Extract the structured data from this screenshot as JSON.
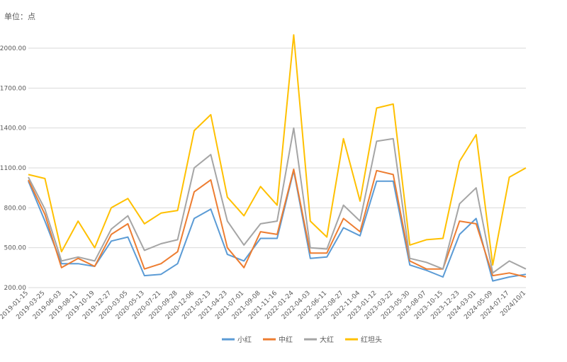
{
  "chart_data": {
    "type": "line",
    "unit_label": "单位：点",
    "ylim": [
      200,
      2200
    ],
    "y_ticks": [
      200,
      500,
      800,
      1100,
      1400,
      1700,
      2000
    ],
    "y_tick_labels": [
      "200.00",
      "500.00",
      "800.00",
      "1100.00",
      "1400.00",
      "1700.00",
      "2000.00"
    ],
    "grid": "horizontal",
    "legend_position": "bottom",
    "x_tick_labels": [
      "2019-01-15",
      "2019-03-25",
      "2019-06-03",
      "2019-08-11",
      "2019-10-19",
      "2019-12-27",
      "2020-03-05",
      "2020-05-13",
      "2020-07-21",
      "2020-09-28",
      "2020-12-06",
      "2021-02-13",
      "2021-04-23",
      "2021-07-01",
      "2021-09-08",
      "2021-11-16",
      "2022-01-24",
      "2022-04-03",
      "2022-06-11",
      "2022-08-27",
      "2022-11-04",
      "2023-01-12",
      "2023-03-22",
      "2023-05-30",
      "2023-08-07",
      "2023-10-15",
      "2023-12-23",
      "2024-03-01",
      "2024-05-09",
      "2024-07-17",
      "2024/10/1"
    ],
    "x": [
      "2019-01-15",
      "2019-03-25",
      "2019-06-03",
      "2019-08-11",
      "2019-10-19",
      "2019-12-27",
      "2020-03-05",
      "2020-05-13",
      "2020-07-21",
      "2020-09-28",
      "2020-12-06",
      "2021-02-13",
      "2021-04-23",
      "2021-07-01",
      "2021-09-08",
      "2021-11-16",
      "2022-01-24",
      "2022-04-03",
      "2022-06-11",
      "2022-08-27",
      "2022-11-04",
      "2023-01-12",
      "2023-03-22",
      "2023-05-30",
      "2023-08-07",
      "2023-10-15",
      "2023-12-23",
      "2024-03-01",
      "2024-05-09",
      "2024-07-17",
      "2024-10-01"
    ],
    "series": [
      {
        "name": "小红",
        "color": "#5b9bd5",
        "values": [
          1000,
          700,
          380,
          380,
          360,
          550,
          580,
          290,
          300,
          380,
          720,
          790,
          450,
          400,
          570,
          570,
          1080,
          420,
          430,
          650,
          590,
          1000,
          1000,
          370,
          330,
          280,
          600,
          720,
          250,
          280,
          300
        ]
      },
      {
        "name": "中红",
        "color": "#ed7d31",
        "values": [
          1010,
          750,
          350,
          420,
          360,
          600,
          680,
          340,
          380,
          470,
          920,
          1010,
          500,
          350,
          620,
          600,
          1090,
          460,
          460,
          720,
          620,
          1080,
          1050,
          400,
          340,
          340,
          700,
          680,
          290,
          310,
          280
        ]
      },
      {
        "name": "大红",
        "color": "#a5a5a5",
        "values": [
          1030,
          790,
          400,
          430,
          400,
          640,
          740,
          480,
          530,
          560,
          1100,
          1200,
          700,
          520,
          680,
          700,
          1400,
          500,
          490,
          820,
          700,
          1300,
          1320,
          420,
          390,
          340,
          830,
          950,
          310,
          400,
          340
        ]
      },
      {
        "name": "红坦头",
        "color": "#ffc000",
        "values": [
          1050,
          1020,
          470,
          700,
          500,
          800,
          870,
          680,
          760,
          780,
          1380,
          1500,
          880,
          740,
          960,
          820,
          2100,
          700,
          580,
          1320,
          850,
          1550,
          1580,
          520,
          560,
          570,
          1150,
          1350,
          370,
          1030,
          1100
        ]
      }
    ]
  }
}
